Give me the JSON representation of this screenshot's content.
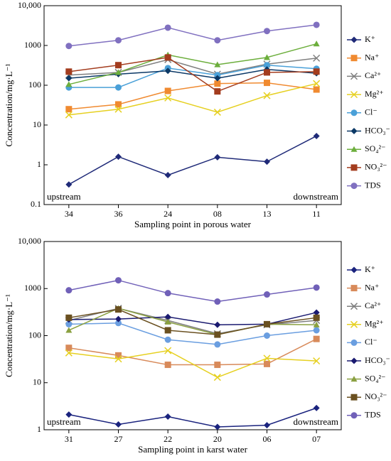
{
  "chart_data": [
    {
      "type": "line",
      "log": true,
      "legend": "right",
      "ylabel": "Concentration/mg·L⁻¹",
      "xlabel": "Sampling point in porous water",
      "annotations": [
        "upstream",
        "downstream"
      ],
      "categories": [
        "34",
        "36",
        "24",
        "08",
        "13",
        "11"
      ],
      "ylim": [
        0.1,
        10000
      ],
      "yticks": [
        0.1,
        1,
        10,
        100,
        1000,
        {
          "value": 10000,
          "label": "10,000"
        }
      ],
      "series": [
        {
          "name": "K⁺",
          "color": "#1f2a78",
          "marker": "diamond",
          "values": [
            0.32,
            1.6,
            0.55,
            1.55,
            1.2,
            5.3
          ]
        },
        {
          "name": "Na⁺",
          "color": "#f08a30",
          "marker": "square",
          "values": [
            25,
            33,
            72,
            110,
            115,
            78
          ]
        },
        {
          "name": "Ca²⁺",
          "color": "#7f7f7f",
          "marker": "x",
          "values": [
            180,
            210,
            440,
            190,
            340,
            480
          ]
        },
        {
          "name": "Mg²⁺",
          "color": "#e6d020",
          "marker": "x",
          "values": [
            18,
            25,
            48,
            21,
            55,
            110
          ]
        },
        {
          "name": "Cl⁻",
          "color": "#4aa0d8",
          "marker": "circle",
          "values": [
            88,
            88,
            270,
            180,
            320,
            260
          ]
        },
        {
          "name": "HCO₃⁻",
          "color": "#0b3866",
          "marker": "diamond",
          "values": [
            150,
            190,
            230,
            150,
            250,
            200
          ]
        },
        {
          "name": "SO₄²⁻",
          "color": "#6cae3c",
          "marker": "triangle",
          "values": [
            105,
            210,
            580,
            330,
            500,
            1100
          ]
        },
        {
          "name": "NO₃²⁻",
          "color": "#a33c1e",
          "marker": "square",
          "values": [
            220,
            320,
            500,
            70,
            210,
            220
          ]
        },
        {
          "name": "TDS",
          "color": "#8070c0",
          "marker": "circle",
          "values": [
            970,
            1350,
            2800,
            1350,
            2300,
            3300
          ]
        }
      ]
    },
    {
      "type": "line",
      "log": true,
      "legend": "right",
      "ylabel": "Concentration/mg·L⁻¹",
      "xlabel": "Sampling point in karst water",
      "annotations": [
        "upstream",
        "downstream"
      ],
      "categories": [
        "31",
        "27",
        "22",
        "20",
        "06",
        "07"
      ],
      "ylim": [
        1,
        10000
      ],
      "yticks": [
        1,
        10,
        100,
        1000,
        {
          "value": 10000,
          "label": "10,000"
        }
      ],
      "series": [
        {
          "name": "K⁺",
          "color": "#1a237e",
          "marker": "diamond",
          "values": [
            2.1,
            1.3,
            1.9,
            1.15,
            1.25,
            2.9
          ]
        },
        {
          "name": "Na⁺",
          "color": "#d88a5a",
          "marker": "square",
          "values": [
            55,
            38,
            24,
            24,
            25,
            85
          ]
        },
        {
          "name": "Ca²⁺",
          "color": "#7f7f7f",
          "marker": "x",
          "values": [
            210,
            380,
            210,
            110,
            170,
            210
          ]
        },
        {
          "name": "Mg²⁺",
          "color": "#e6d020",
          "marker": "x",
          "values": [
            43,
            32,
            48,
            13,
            33,
            29
          ]
        },
        {
          "name": "Cl⁻",
          "color": "#6a9ee0",
          "marker": "circle",
          "values": [
            175,
            185,
            82,
            65,
            100,
            130
          ]
        },
        {
          "name": "HCO₃⁻",
          "color": "#1a1a70",
          "marker": "diamond",
          "values": [
            220,
            225,
            250,
            170,
            175,
            310
          ]
        },
        {
          "name": "SO₄²⁻",
          "color": "#8aa040",
          "marker": "triangle",
          "values": [
            130,
            380,
            195,
            105,
            175,
            170
          ]
        },
        {
          "name": "NO₃²⁻",
          "color": "#6a5020",
          "marker": "square",
          "values": [
            240,
            360,
            130,
            105,
            175,
            240
          ]
        },
        {
          "name": "TDS",
          "color": "#7060b8",
          "marker": "circle",
          "values": [
            920,
            1500,
            800,
            530,
            750,
            1050
          ]
        }
      ]
    }
  ]
}
